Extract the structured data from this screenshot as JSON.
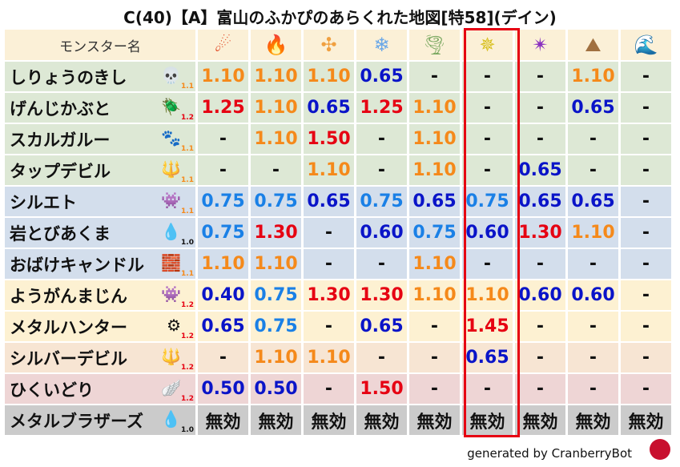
{
  "title": "C(40)【A】富山のふかぴのあらくれた地図[特58](デイン)",
  "header": {
    "name_label": "モンスター名",
    "elements": [
      {
        "icon": "fireball-icon",
        "glyph": "☄",
        "color": "#e0401a"
      },
      {
        "icon": "flame-icon",
        "glyph": "🔥",
        "color": "#e85a1a"
      },
      {
        "icon": "explosion-icon",
        "glyph": "✣",
        "color": "#f0a040"
      },
      {
        "icon": "ice-icon",
        "glyph": "❄",
        "color": "#6aa8e8"
      },
      {
        "icon": "wind-icon",
        "glyph": "🌪",
        "color": "#7aa860"
      },
      {
        "icon": "lightning-icon",
        "glyph": "✵",
        "color": "#d8c020"
      },
      {
        "icon": "darkness-icon",
        "glyph": "✴",
        "color": "#8a30c0"
      },
      {
        "icon": "earth-icon",
        "glyph": "⛰",
        "color": "#a07040"
      },
      {
        "icon": "water-icon",
        "glyph": "🌊",
        "color": "#2080d0"
      }
    ]
  },
  "colors": {
    "high": "#e60012",
    "mid": "#f5891a",
    "low": "#0a14c8",
    "lowmid": "#1a80e6",
    "none": "#111111",
    "highlight_box": "#e60012"
  },
  "rows": [
    {
      "name": "しりょうのきし",
      "icon": "skull-icon",
      "glyph": "💀",
      "sub": "1.1",
      "bg": "#dde8d5",
      "values": [
        "1.10",
        "1.10",
        "1.10",
        "0.65",
        "-",
        "-",
        "-",
        "1.10",
        "-"
      ]
    },
    {
      "name": "げんじかぶと",
      "icon": "beetle-icon",
      "glyph": "🪲",
      "sub": "1.2",
      "bg": "#dde8d5",
      "values": [
        "1.25",
        "1.10",
        "0.65",
        "1.25",
        "1.10",
        "-",
        "-",
        "0.65",
        "-"
      ]
    },
    {
      "name": "スカルガルー",
      "icon": "paw-icon",
      "glyph": "🐾",
      "sub": "1.1",
      "bg": "#dde8d5",
      "values": [
        "-",
        "1.10",
        "1.50",
        "-",
        "1.10",
        "-",
        "-",
        "-",
        "-"
      ]
    },
    {
      "name": "タップデビル",
      "icon": "trident-icon",
      "glyph": "🔱",
      "sub": "1.1",
      "bg": "#dde8d5",
      "values": [
        "-",
        "-",
        "1.10",
        "-",
        "1.10",
        "-",
        "0.65",
        "-",
        "-"
      ]
    },
    {
      "name": "シルエト",
      "icon": "demon-icon",
      "glyph": "👾",
      "sub": "1.1",
      "bg": "#d3deec",
      "values": [
        "0.75",
        "0.75",
        "0.65",
        "0.75",
        "0.65",
        "0.75",
        "0.65",
        "0.65",
        "-"
      ]
    },
    {
      "name": "岩とびあくま",
      "icon": "drop-icon",
      "glyph": "💧",
      "sub": "1.0",
      "bg": "#d3deec",
      "values": [
        "0.75",
        "1.30",
        "-",
        "0.60",
        "0.75",
        "0.60",
        "1.30",
        "1.10",
        "-"
      ]
    },
    {
      "name": "おばけキャンドル",
      "icon": "brick-icon",
      "glyph": "🧱",
      "sub": "1.1",
      "bg": "#d3deec",
      "values": [
        "1.10",
        "1.10",
        "-",
        "-",
        "1.10",
        "-",
        "-",
        "-",
        "-"
      ]
    },
    {
      "name": "ようがんまじん",
      "icon": "demon-icon",
      "glyph": "👾",
      "sub": "1.2",
      "bg": "#fdf1d2",
      "values": [
        "0.40",
        "0.75",
        "1.30",
        "1.30",
        "1.10",
        "1.10",
        "0.60",
        "0.60",
        "-"
      ]
    },
    {
      "name": "メタルハンター",
      "icon": "gear-icon",
      "glyph": "⚙",
      "sub": "1.2",
      "bg": "#fdf1d2",
      "values": [
        "0.65",
        "0.75",
        "-",
        "0.65",
        "-",
        "1.45",
        "-",
        "-",
        "-"
      ]
    },
    {
      "name": "シルバーデビル",
      "icon": "trident-icon",
      "glyph": "🔱",
      "sub": "1.2",
      "bg": "#f7e5d3",
      "values": [
        "-",
        "1.10",
        "1.10",
        "-",
        "-",
        "0.65",
        "-",
        "-",
        "-"
      ]
    },
    {
      "name": "ひくいどり",
      "icon": "wing-icon",
      "glyph": "🪽",
      "sub": "1.2",
      "bg": "#eed5d5",
      "values": [
        "0.50",
        "0.50",
        "-",
        "1.50",
        "-",
        "-",
        "-",
        "-",
        "-"
      ]
    },
    {
      "name": "メタルブラザーズ",
      "icon": "slime-icon",
      "glyph": "💧",
      "sub": "1.0",
      "bg": "#cbcbcb",
      "values": [
        "無効",
        "無効",
        "無効",
        "無効",
        "無効",
        "無効",
        "無効",
        "無効",
        "無効"
      ]
    }
  ],
  "footer": "generated by CranberryBot"
}
